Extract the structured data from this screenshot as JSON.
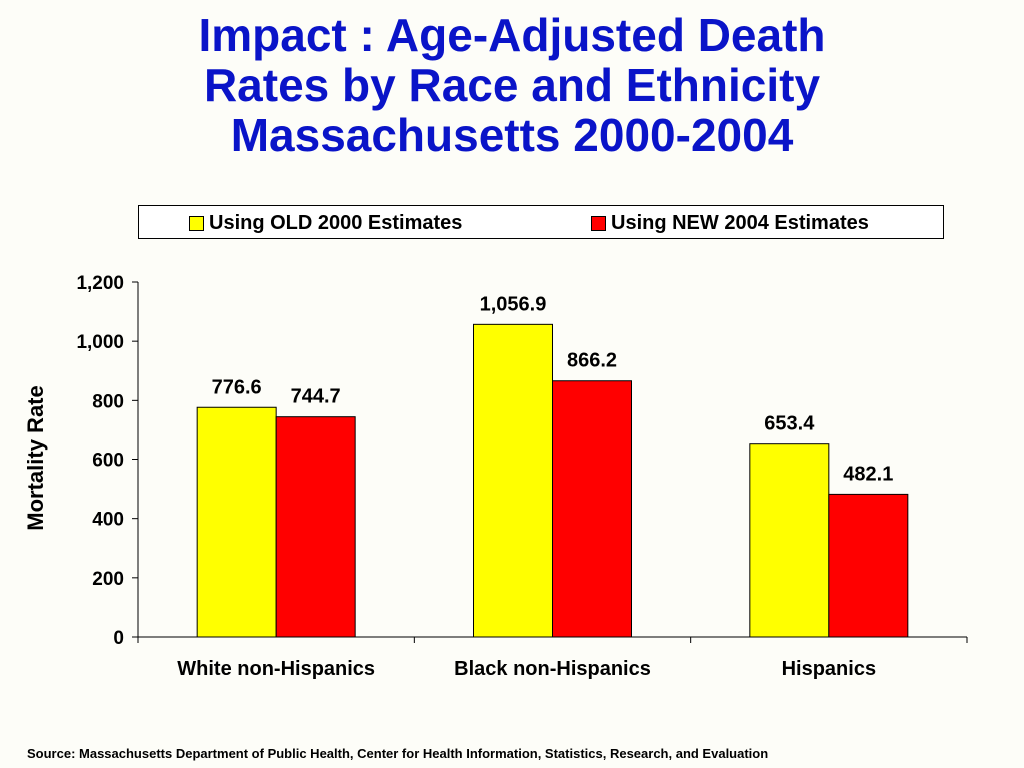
{
  "title": {
    "line1": "Impact : Age-Adjusted Death",
    "line2": "Rates by Race and Ethnicity",
    "line3": "Massachusetts 2000-2004"
  },
  "source": "Source:  Massachusetts Department of Public Health, Center for Health Information, Statistics, Research, and Evaluation",
  "chart_data": {
    "type": "bar",
    "categories": [
      "White non-Hispanics",
      "Black non-Hispanics",
      "Hispanics"
    ],
    "series": [
      {
        "name": "Using OLD 2000 Estimates",
        "color": "#ffff00",
        "values": [
          776.6,
          1056.9,
          653.4
        ],
        "labels": [
          "776.6",
          "1,056.9",
          "653.4"
        ]
      },
      {
        "name": "Using NEW 2004 Estimates",
        "color": "#ff0000",
        "values": [
          744.7,
          866.2,
          482.1
        ],
        "labels": [
          "744.7",
          "866.2",
          "482.1"
        ]
      }
    ],
    "ylabel": "Mortality Rate",
    "xlabel": "",
    "ylim": [
      0,
      1200
    ],
    "yticks": [
      0,
      200,
      400,
      600,
      800,
      1000,
      1200
    ],
    "ytick_labels": [
      "0",
      "200",
      "400",
      "600",
      "800",
      "1,000",
      "1,200"
    ],
    "grid": false,
    "legend_position": "top"
  }
}
